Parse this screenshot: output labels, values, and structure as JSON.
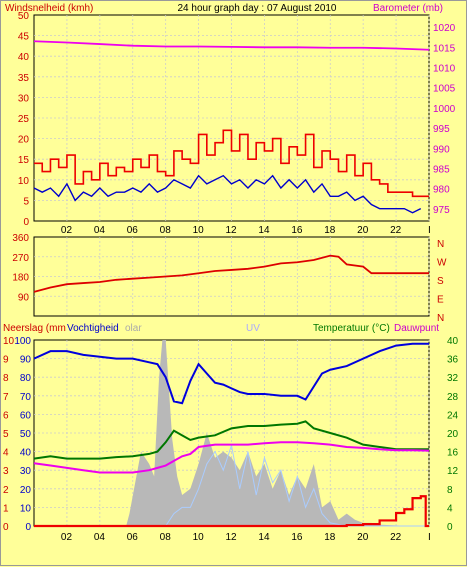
{
  "header": {
    "left_title": "Windsnelheid (kmh)",
    "center_title": "24 hour graph day : 07 August 2010",
    "right_title": "Barometer (mb)"
  },
  "colors": {
    "background": "#ffff99",
    "plot_bg": "#ffff99",
    "grid": "#cccccc",
    "wind_gust": "#ee0000",
    "wind_avg": "#0000cc",
    "barometer": "#ee00ee",
    "direction": "#dd0000",
    "humidity": "#0000dd",
    "solar": "#b8b8b8",
    "uv": "#aaccff",
    "temperature": "#007700",
    "dewpoint": "#ee00ee",
    "rain": "#ee0000",
    "left_axis_text": "#cc0000",
    "right_axis_text": "#cc00cc",
    "direction_text": "#cc0000",
    "temp_text": "#007700"
  },
  "x_ticks": [
    "02",
    "04",
    "06",
    "08",
    "10",
    "12",
    "14",
    "16",
    "18",
    "20",
    "22",
    "I"
  ],
  "chart_data": [
    {
      "type": "line",
      "name": "wind-barometer",
      "x_range_hours": [
        0,
        24
      ],
      "y_left": {
        "label": "Windsnelheid (kmh)",
        "range": [
          0,
          50
        ],
        "ticks": [
          "0",
          "5",
          "10",
          "15",
          "20",
          "25",
          "30",
          "35",
          "40",
          "45",
          "50"
        ]
      },
      "y_right": {
        "label": "Barometer (mb)",
        "range": [
          972,
          1023
        ],
        "ticks": [
          "975",
          "980",
          "985",
          "990",
          "995",
          "1000",
          "1005",
          "1010",
          "1015",
          "1020"
        ]
      },
      "series": [
        {
          "name": "gust",
          "axis": "left",
          "x": [
            0,
            0.5,
            1,
            1.5,
            2,
            2.5,
            3,
            3.5,
            4,
            4.5,
            5,
            5.5,
            6,
            6.5,
            7,
            7.5,
            8,
            8.5,
            9,
            9.5,
            10,
            10.5,
            11,
            11.5,
            12,
            12.5,
            13,
            13.5,
            14,
            14.5,
            15,
            15.5,
            16,
            16.5,
            17,
            17.5,
            18,
            18.5,
            19,
            19.5,
            20,
            20.5,
            21,
            21.5,
            22,
            22.5,
            23,
            23.5
          ],
          "y": [
            14,
            12,
            15,
            13,
            16,
            9,
            12,
            10,
            14,
            11,
            13,
            12,
            15,
            13,
            16,
            12,
            11,
            17,
            15,
            14,
            21,
            16,
            19,
            22,
            17,
            21,
            15,
            19,
            17,
            20,
            14,
            18,
            16,
            21,
            13,
            17,
            15,
            12,
            16,
            11,
            14,
            10,
            9,
            7,
            7,
            7,
            6,
            6
          ]
        },
        {
          "name": "average",
          "axis": "left",
          "x": [
            0,
            0.5,
            1,
            1.5,
            2,
            2.5,
            3,
            3.5,
            4,
            4.5,
            5,
            5.5,
            6,
            6.5,
            7,
            7.5,
            8,
            8.5,
            9,
            9.5,
            10,
            10.5,
            11,
            11.5,
            12,
            12.5,
            13,
            13.5,
            14,
            14.5,
            15,
            15.5,
            16,
            16.5,
            17,
            17.5,
            18,
            18.5,
            19,
            19.5,
            20,
            20.5,
            21,
            21.5,
            22,
            22.5,
            23,
            23.5
          ],
          "y": [
            8,
            7,
            8,
            6,
            9,
            5,
            7,
            6,
            8,
            6,
            7,
            7,
            8,
            7,
            9,
            7,
            8,
            10,
            9,
            8,
            11,
            9,
            10,
            11,
            9,
            10,
            8,
            10,
            9,
            11,
            8,
            10,
            8,
            10,
            7,
            9,
            6,
            6,
            7,
            5,
            6,
            4,
            3,
            3,
            3,
            3,
            2,
            3
          ]
        },
        {
          "name": "barometer",
          "axis": "right",
          "x": [
            0,
            2,
            4,
            6,
            8,
            10,
            12,
            14,
            16,
            18,
            20,
            22,
            24
          ],
          "y": [
            1016.5,
            1016.2,
            1015.8,
            1015.4,
            1015.2,
            1015.2,
            1015.1,
            1015.0,
            1015.0,
            1014.9,
            1014.9,
            1014.7,
            1014.4
          ]
        }
      ]
    },
    {
      "type": "line",
      "name": "wind-direction",
      "y_left": {
        "range": [
          0,
          360
        ],
        "ticks": [
          "90",
          "180",
          "270",
          "360"
        ]
      },
      "y_right_labels": [
        "N",
        "W",
        "S",
        "E",
        "N"
      ],
      "series": [
        {
          "name": "direction",
          "x": [
            0,
            1,
            2,
            3,
            4,
            5,
            6,
            7,
            8,
            9,
            10,
            11,
            12,
            13,
            14,
            15,
            16,
            17,
            18,
            18.5,
            19,
            20,
            20.5,
            21,
            22,
            23,
            24
          ],
          "y": [
            110,
            130,
            145,
            150,
            155,
            165,
            170,
            175,
            180,
            185,
            195,
            205,
            210,
            215,
            225,
            240,
            245,
            255,
            275,
            270,
            235,
            225,
            195,
            195,
            195,
            195,
            195
          ]
        }
      ]
    },
    {
      "type": "line",
      "name": "rain-humidity-temperature",
      "header_labels": {
        "rain": "Neerslag (mm",
        "humidity": "Vochtigheid",
        "solar": "olar",
        "uv": "UV",
        "temperature": "Temperatuur (°C)",
        "dewpoint": "Dauwpunt"
      },
      "y_left_rain": {
        "range": [
          0,
          10
        ],
        "ticks": [
          "0",
          "1",
          "2",
          "3",
          "4",
          "5",
          "6",
          "7",
          "8",
          "9",
          "10"
        ]
      },
      "y_left_humidity": {
        "range": [
          0,
          100
        ],
        "ticks": [
          "0",
          "10",
          "20",
          "30",
          "40",
          "50",
          "60",
          "70",
          "80",
          "90",
          "100"
        ]
      },
      "y_left_solar_scale": {
        "range": [
          0,
          30
        ],
        "ticks": [
          "0",
          "3",
          "6",
          "9",
          "12",
          "15",
          "18",
          "21",
          "24",
          "27",
          "30"
        ]
      },
      "y_right": {
        "range": [
          0,
          40
        ],
        "ticks": [
          "0",
          "4",
          "8",
          "12",
          "16",
          "20",
          "24",
          "28",
          "32",
          "36",
          "40"
        ]
      },
      "series": [
        {
          "name": "humidity",
          "axis": "humidity",
          "x": [
            0,
            1,
            2,
            3,
            4,
            5,
            6,
            7,
            7.5,
            8,
            8.5,
            9,
            9.5,
            10,
            10.5,
            11,
            11.5,
            12,
            12.5,
            13,
            14,
            15,
            16,
            16.5,
            17,
            17.5,
            18,
            19,
            20,
            21,
            22,
            23,
            24
          ],
          "y": [
            90,
            94,
            94,
            92,
            91,
            90,
            90,
            88,
            87,
            80,
            67,
            66,
            78,
            87,
            82,
            77,
            76,
            74,
            72,
            71,
            71,
            70,
            70,
            68,
            75,
            82,
            84,
            86,
            90,
            94,
            97,
            98,
            98
          ]
        },
        {
          "name": "temperature",
          "axis": "right",
          "x": [
            0,
            1,
            2,
            3,
            4,
            5,
            6,
            7,
            7.5,
            8,
            8.5,
            9,
            9.5,
            10,
            11,
            12,
            13,
            14,
            15,
            16,
            16.5,
            17,
            18,
            19,
            20,
            21,
            22,
            23,
            24
          ],
          "y": [
            14.5,
            15,
            14.5,
            14.5,
            14.5,
            14.8,
            15,
            15.5,
            16,
            18,
            20.5,
            19.5,
            18.5,
            19,
            19.5,
            21,
            21.5,
            21.5,
            21.8,
            22,
            22.5,
            21,
            20,
            19,
            17.5,
            17,
            16.5,
            16.5,
            16.5
          ]
        },
        {
          "name": "dewpoint",
          "axis": "right",
          "x": [
            0,
            1,
            2,
            3,
            4,
            5,
            6,
            7,
            7.5,
            8,
            8.5,
            9,
            9.5,
            10,
            11,
            12,
            13,
            14,
            15,
            16,
            17,
            18,
            19,
            20,
            21,
            22,
            23,
            24
          ],
          "y": [
            13.5,
            13,
            12.5,
            12,
            11.5,
            11.5,
            11.5,
            12,
            12.5,
            13,
            14,
            15,
            15.5,
            17,
            17.5,
            17.5,
            17.5,
            17.8,
            18,
            18,
            17.8,
            17.5,
            17,
            16.8,
            16.5,
            16.3,
            16.3,
            16.2
          ]
        },
        {
          "name": "solar",
          "axis": "solar",
          "type": "area",
          "x": [
            0,
            5.6,
            5.8,
            6.5,
            7,
            7.3,
            7.6,
            7.8,
            8,
            8.4,
            8.7,
            9,
            9.5,
            10,
            10.5,
            11,
            11.5,
            12,
            12.5,
            13,
            13.5,
            14,
            14.5,
            15,
            15.5,
            16,
            16.5,
            17,
            17.5,
            18,
            18.5,
            19,
            19.5,
            20,
            20.5,
            21,
            22,
            23,
            24
          ],
          "y": [
            0,
            0,
            2,
            12,
            10,
            8,
            24,
            30,
            30,
            14,
            8,
            5,
            6,
            10,
            15,
            11,
            12,
            11,
            9,
            12,
            8,
            10,
            6,
            9,
            5,
            8,
            6,
            10,
            3,
            4,
            1,
            2,
            1,
            0.5,
            0.5,
            0.2,
            0.1,
            0,
            0
          ]
        },
        {
          "name": "uv",
          "axis": "solar",
          "x": [
            0,
            8,
            8.5,
            9,
            9.5,
            10,
            10.5,
            11,
            11.5,
            12,
            12.5,
            13,
            13.5,
            14,
            14.5,
            15,
            15.5,
            16,
            16.5,
            17,
            17.5,
            18,
            19,
            24
          ],
          "y": [
            0,
            0,
            2,
            3,
            3,
            6,
            10,
            12,
            9,
            13,
            6,
            12,
            5,
            11,
            7,
            9,
            4,
            8,
            3,
            6,
            2,
            0.5,
            0,
            0
          ]
        },
        {
          "name": "rain",
          "axis": "rain",
          "x": [
            0,
            18,
            19,
            20,
            21,
            22,
            22.5,
            23,
            23.5,
            23.8
          ],
          "y": [
            0,
            0,
            0.05,
            0.1,
            0.3,
            0.7,
            0.9,
            1.5,
            1.6,
            0
          ]
        }
      ]
    }
  ]
}
